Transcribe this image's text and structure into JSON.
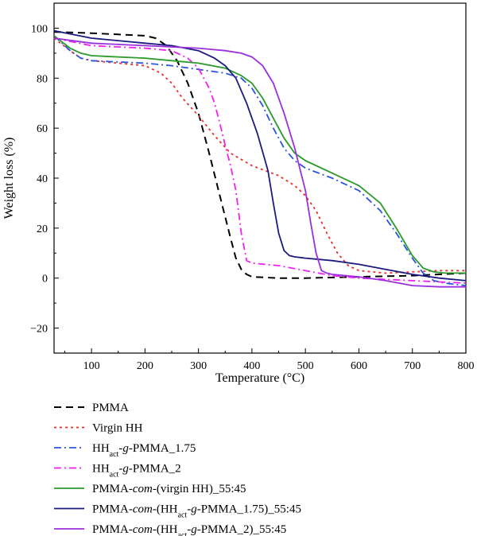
{
  "chart_data": {
    "type": "line",
    "title": "",
    "xlabel": "Temperature (°C)",
    "ylabel": "Weight loss (%)",
    "xlim": [
      30,
      800
    ],
    "ylim": [
      -30,
      110
    ],
    "x_ticks": [
      100,
      200,
      300,
      400,
      500,
      600,
      700,
      800
    ],
    "y_ticks": [
      -20,
      0,
      20,
      40,
      60,
      80,
      100
    ],
    "grid": false,
    "legend_placement": "below",
    "series": [
      {
        "name": "PMMA",
        "color": "#000000",
        "dash": "dashed",
        "x": [
          30,
          100,
          150,
          200,
          220,
          240,
          260,
          280,
          300,
          320,
          340,
          360,
          370,
          380,
          390,
          400,
          450,
          500,
          600,
          700,
          800
        ],
        "y": [
          98.5,
          98,
          97.5,
          97,
          96,
          93,
          87,
          78,
          66,
          50,
          33,
          16,
          8,
          3.5,
          1.5,
          0.5,
          0,
          0,
          0.5,
          1,
          2
        ]
      },
      {
        "name": "Virgin HH",
        "color": "#e8302a",
        "dash": "dotted",
        "x": [
          30,
          60,
          80,
          100,
          150,
          200,
          230,
          250,
          270,
          300,
          330,
          360,
          400,
          450,
          480,
          500,
          520,
          540,
          560,
          580,
          600,
          650,
          700,
          750,
          800
        ],
        "y": [
          96,
          91,
          88,
          87,
          86,
          85,
          82,
          78,
          72,
          65,
          57,
          50,
          45,
          41,
          37,
          33,
          27,
          18,
          10,
          5,
          3,
          2,
          2.5,
          3,
          3
        ]
      },
      {
        "name": "HHact-g-PMMA_1.75",
        "color": "#2a55e0",
        "dash": "dashdot",
        "x": [
          30,
          60,
          80,
          100,
          150,
          200,
          250,
          300,
          350,
          380,
          400,
          420,
          440,
          460,
          480,
          500,
          550,
          600,
          640,
          670,
          700,
          720,
          740,
          760,
          800
        ],
        "y": [
          97,
          91,
          88,
          87,
          86.5,
          86,
          85,
          83.5,
          82,
          80,
          76,
          69,
          60,
          52,
          47,
          44,
          40,
          35,
          27,
          18,
          8,
          2,
          -1,
          -2,
          -3
        ]
      },
      {
        "name": "HHact-g-PMMA_2",
        "color": "#f020f0",
        "dash": "dashdot",
        "x": [
          30,
          100,
          150,
          200,
          250,
          280,
          300,
          320,
          330,
          340,
          350,
          360,
          370,
          380,
          390,
          400,
          450,
          500,
          550,
          600,
          700,
          800
        ],
        "y": [
          96,
          93,
          92.5,
          92,
          91,
          88,
          84,
          76,
          70,
          62,
          53,
          45,
          35,
          18,
          7,
          6,
          5,
          3,
          1,
          0,
          -1,
          -2
        ]
      },
      {
        "name": "PMMA-com-(virgin HH)_55:45",
        "color": "#2a9a2a",
        "dash": "solid",
        "x": [
          30,
          60,
          80,
          100,
          150,
          200,
          250,
          300,
          350,
          380,
          400,
          420,
          440,
          460,
          480,
          500,
          550,
          600,
          640,
          670,
          700,
          720,
          740,
          760,
          800
        ],
        "y": [
          97,
          92,
          90,
          89,
          88.5,
          88,
          87,
          86,
          84,
          81,
          78,
          72,
          64,
          56,
          50,
          47,
          42,
          37,
          30,
          20,
          9,
          4,
          2.5,
          2,
          2
        ]
      },
      {
        "name": "PMMA-com-(HHact-g-PMMA_1.75)_55:45",
        "color": "#1a1a80",
        "dash": "solid",
        "x": [
          30,
          100,
          150,
          200,
          250,
          300,
          330,
          350,
          370,
          390,
          410,
          430,
          440,
          450,
          460,
          470,
          480,
          500,
          550,
          600,
          650,
          700,
          750,
          800
        ],
        "y": [
          99,
          96,
          95,
          94,
          93,
          91,
          88,
          85,
          80,
          70,
          58,
          43,
          30,
          18,
          11,
          9,
          8.5,
          8,
          7,
          5.5,
          3.5,
          1.5,
          0,
          -1
        ]
      },
      {
        "name": "PMMA-com-(HHact-g-PMMA_2)_55:45",
        "color": "#9b2fe0",
        "dash": "solid",
        "x": [
          30,
          100,
          150,
          200,
          250,
          300,
          350,
          380,
          400,
          420,
          440,
          460,
          480,
          500,
          510,
          520,
          530,
          540,
          550,
          600,
          650,
          700,
          750,
          800
        ],
        "y": [
          96,
          94,
          93.5,
          93,
          92.5,
          92,
          91,
          90,
          88.5,
          85,
          78,
          66,
          52,
          35,
          22,
          10,
          3,
          2,
          1.5,
          0.5,
          -1,
          -3,
          -3.5,
          -3.5
        ]
      }
    ]
  }
}
